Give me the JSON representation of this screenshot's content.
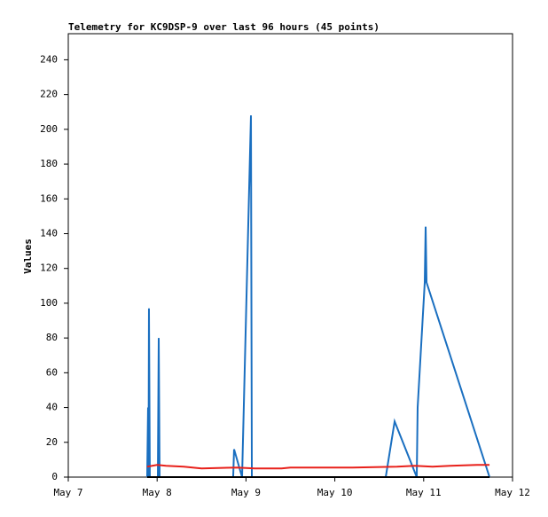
{
  "chart_data": {
    "type": "line",
    "title": "Telemetry for KC9DSP-9 over last 96 hours (45 points)",
    "y_label": "Values",
    "xlim": [
      7,
      12
    ],
    "xticks": [
      {
        "value": 7,
        "label": "May 7"
      },
      {
        "value": 8,
        "label": "May 8"
      },
      {
        "value": 9,
        "label": "May 9"
      },
      {
        "value": 10,
        "label": "May 10"
      },
      {
        "value": 11,
        "label": "May 11"
      },
      {
        "value": 12,
        "label": "May 12"
      }
    ],
    "ylim": [
      0,
      255
    ],
    "yticks": [
      0,
      20,
      40,
      60,
      80,
      100,
      120,
      140,
      160,
      180,
      200,
      220,
      240
    ],
    "grid": false,
    "series": [
      {
        "color": "#1a6fc0",
        "x": [
          7.888,
          7.898,
          7.903,
          7.908,
          7.918,
          8.008,
          8.013,
          8.018,
          8.028,
          8.856,
          8.866,
          8.956,
          9.056,
          9.066,
          10.573,
          10.673,
          10.922,
          10.932,
          11.012,
          11.022,
          11.032,
          11.741
        ],
        "values": [
          0,
          40,
          0,
          97,
          0,
          0,
          40,
          80,
          0,
          0,
          16,
          0,
          208,
          0,
          0,
          32,
          0,
          40,
          112,
          144,
          112,
          0
        ]
      },
      {
        "color": "#e8201a",
        "x": [
          7.888,
          8.0,
          8.1,
          8.3,
          8.5,
          8.9,
          9.1,
          9.4,
          9.5,
          10.2,
          10.7,
          10.9,
          11.1,
          11.3,
          11.6,
          11.741
        ],
        "values": [
          6,
          7,
          6.5,
          6,
          5,
          5.5,
          5,
          5,
          5.5,
          5.5,
          6,
          6.5,
          6,
          6.5,
          7,
          7
        ]
      },
      {
        "color": "#000000",
        "x": [
          7.888,
          11.741
        ],
        "values": [
          0,
          0
        ]
      }
    ]
  }
}
